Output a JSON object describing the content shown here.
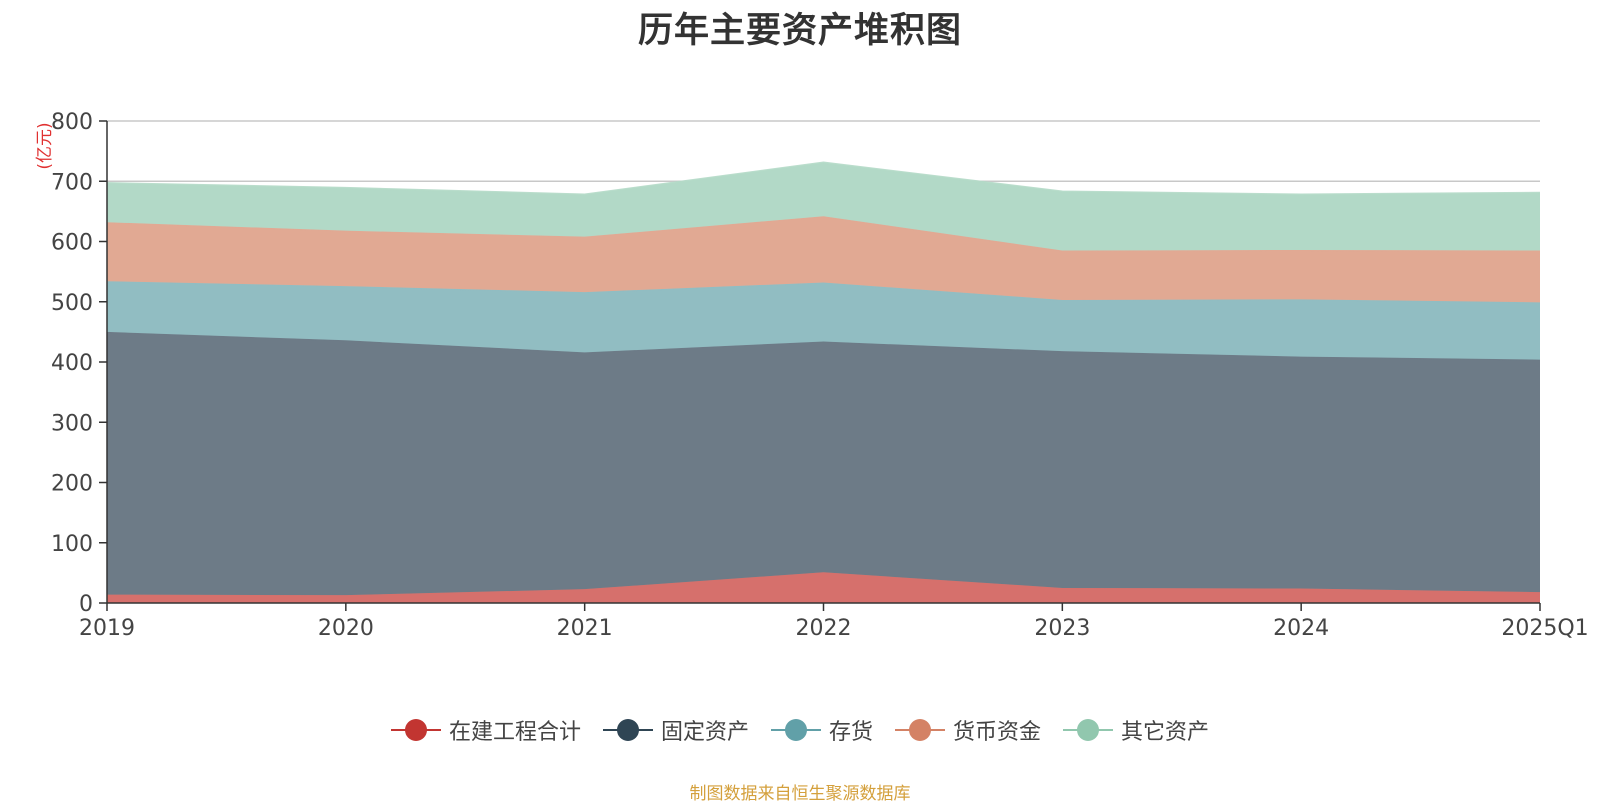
{
  "chart_data": {
    "type": "area",
    "stacked": true,
    "title": "历年主要资产堆积图",
    "unit_label": "(亿元)",
    "categories": [
      "2019",
      "2020",
      "2021",
      "2022",
      "2023",
      "2024",
      "2025Q1"
    ],
    "ylim": [
      0,
      800
    ],
    "yticks": [
      "0",
      "100",
      "200",
      "300",
      "400",
      "500",
      "600",
      "700",
      "800"
    ],
    "grid": true,
    "legend_position": "bottom",
    "series": [
      {
        "name": "在建工程合计",
        "color": "#c23531",
        "area_color": "#d6706c",
        "values": [
          14,
          13,
          23,
          51,
          25,
          24,
          18
        ]
      },
      {
        "name": "固定资产",
        "color": "#2f4554",
        "area_color": "#6d7b87",
        "values": [
          436,
          423,
          393,
          383,
          393,
          385,
          386
        ]
      },
      {
        "name": "存货",
        "color": "#61a0a8",
        "area_color": "#91bdc2",
        "values": [
          84,
          90,
          100,
          98,
          85,
          95,
          95
        ]
      },
      {
        "name": "货币资金",
        "color": "#d48265",
        "area_color": "#e1a993",
        "values": [
          98,
          92,
          92,
          110,
          82,
          82,
          86
        ]
      },
      {
        "name": "其它资产",
        "color": "#91c7ae",
        "area_color": "#b2d9c7",
        "values": [
          65,
          71,
          70,
          89,
          98,
          92,
          96
        ]
      }
    ],
    "source_note": "制图数据来自恒生聚源数据库"
  }
}
